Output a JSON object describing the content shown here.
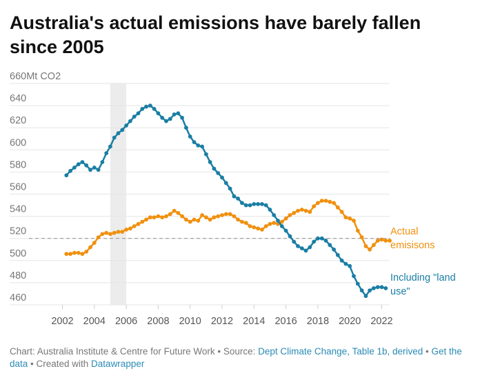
{
  "title": "Australia's actual emissions have barely fallen since 2005",
  "chart_data": {
    "type": "line",
    "title": "Australia's actual emissions have barely fallen since 2005",
    "ylabel": "Mt CO2",
    "y_unit_prefix_label": "660Mt CO2",
    "ylim": [
      460,
      660
    ],
    "y_ticks": [
      "460",
      "480",
      "500",
      "520",
      "540",
      "560",
      "580",
      "600",
      "620",
      "640"
    ],
    "xlim": [
      2002,
      2022.5
    ],
    "x_ticks": [
      "2002",
      "2004",
      "2006",
      "2008",
      "2010",
      "2012",
      "2014",
      "2016",
      "2018",
      "2020",
      "2022"
    ],
    "grid": true,
    "highlight_band": {
      "from": 2005,
      "to": 2006
    },
    "reference_line": {
      "y": 520
    },
    "series": [
      {
        "name": "Actual emisisons",
        "label": "Actual emisisons",
        "color": "#f0900f",
        "points": [
          [
            2002.25,
            506
          ],
          [
            2002.5,
            506
          ],
          [
            2002.75,
            507
          ],
          [
            2003.0,
            507
          ],
          [
            2003.25,
            506
          ],
          [
            2003.5,
            508
          ],
          [
            2003.75,
            512
          ],
          [
            2004.0,
            516
          ],
          [
            2004.25,
            521
          ],
          [
            2004.5,
            524
          ],
          [
            2004.75,
            525
          ],
          [
            2005.0,
            524
          ],
          [
            2005.25,
            525
          ],
          [
            2005.5,
            526
          ],
          [
            2005.75,
            526
          ],
          [
            2006.0,
            528
          ],
          [
            2006.25,
            529
          ],
          [
            2006.5,
            531
          ],
          [
            2006.75,
            533
          ],
          [
            2007.0,
            535
          ],
          [
            2007.25,
            537
          ],
          [
            2007.5,
            539
          ],
          [
            2007.75,
            539
          ],
          [
            2008.0,
            540
          ],
          [
            2008.25,
            539
          ],
          [
            2008.5,
            540
          ],
          [
            2008.75,
            542
          ],
          [
            2009.0,
            545
          ],
          [
            2009.25,
            543
          ],
          [
            2009.5,
            540
          ],
          [
            2009.75,
            537
          ],
          [
            2010.0,
            535
          ],
          [
            2010.25,
            537
          ],
          [
            2010.5,
            536
          ],
          [
            2010.75,
            541
          ],
          [
            2011.0,
            539
          ],
          [
            2011.25,
            537
          ],
          [
            2011.5,
            539
          ],
          [
            2011.75,
            540
          ],
          [
            2012.0,
            541
          ],
          [
            2012.25,
            542
          ],
          [
            2012.5,
            542
          ],
          [
            2012.75,
            540
          ],
          [
            2013.0,
            537
          ],
          [
            2013.25,
            535
          ],
          [
            2013.5,
            534
          ],
          [
            2013.75,
            531
          ],
          [
            2014.0,
            530
          ],
          [
            2014.25,
            529
          ],
          [
            2014.5,
            528
          ],
          [
            2014.75,
            531
          ],
          [
            2015.0,
            533
          ],
          [
            2015.25,
            534
          ],
          [
            2015.5,
            533
          ],
          [
            2015.75,
            535
          ],
          [
            2016.0,
            538
          ],
          [
            2016.25,
            541
          ],
          [
            2016.5,
            543
          ],
          [
            2016.75,
            545
          ],
          [
            2017.0,
            546
          ],
          [
            2017.25,
            545
          ],
          [
            2017.5,
            544
          ],
          [
            2017.75,
            549
          ],
          [
            2018.0,
            552
          ],
          [
            2018.25,
            554
          ],
          [
            2018.5,
            554
          ],
          [
            2018.75,
            553
          ],
          [
            2019.0,
            552
          ],
          [
            2019.25,
            548
          ],
          [
            2019.5,
            544
          ],
          [
            2019.75,
            539
          ],
          [
            2020.0,
            538
          ],
          [
            2020.25,
            536
          ],
          [
            2020.5,
            527
          ],
          [
            2020.75,
            521
          ],
          [
            2021.0,
            513
          ],
          [
            2021.25,
            510
          ],
          [
            2021.5,
            514
          ],
          [
            2021.75,
            518
          ],
          [
            2022.0,
            519
          ],
          [
            2022.25,
            518
          ],
          [
            2022.5,
            518
          ]
        ]
      },
      {
        "name": "Including \"land use\"",
        "label": "Including \"land use\"",
        "color": "#1a7ea4",
        "points": [
          [
            2002.25,
            577
          ],
          [
            2002.5,
            581
          ],
          [
            2002.75,
            584
          ],
          [
            2003.0,
            587
          ],
          [
            2003.25,
            589
          ],
          [
            2003.5,
            586
          ],
          [
            2003.75,
            582
          ],
          [
            2004.0,
            584
          ],
          [
            2004.25,
            582
          ],
          [
            2004.5,
            589
          ],
          [
            2004.75,
            597
          ],
          [
            2005.0,
            603
          ],
          [
            2005.25,
            611
          ],
          [
            2005.5,
            615
          ],
          [
            2005.75,
            618
          ],
          [
            2006.0,
            622
          ],
          [
            2006.25,
            626
          ],
          [
            2006.5,
            630
          ],
          [
            2006.75,
            633
          ],
          [
            2007.0,
            637
          ],
          [
            2007.25,
            639
          ],
          [
            2007.5,
            640
          ],
          [
            2007.75,
            637
          ],
          [
            2008.0,
            633
          ],
          [
            2008.25,
            629
          ],
          [
            2008.5,
            626
          ],
          [
            2008.75,
            628
          ],
          [
            2009.0,
            632
          ],
          [
            2009.25,
            633
          ],
          [
            2009.5,
            629
          ],
          [
            2009.75,
            620
          ],
          [
            2010.0,
            612
          ],
          [
            2010.25,
            607
          ],
          [
            2010.5,
            604
          ],
          [
            2010.75,
            603
          ],
          [
            2011.0,
            596
          ],
          [
            2011.25,
            589
          ],
          [
            2011.5,
            583
          ],
          [
            2011.75,
            579
          ],
          [
            2012.0,
            575
          ],
          [
            2012.25,
            570
          ],
          [
            2012.5,
            565
          ],
          [
            2012.75,
            558
          ],
          [
            2013.0,
            556
          ],
          [
            2013.25,
            552
          ],
          [
            2013.5,
            550
          ],
          [
            2013.75,
            550
          ],
          [
            2014.0,
            551
          ],
          [
            2014.25,
            551
          ],
          [
            2014.5,
            551
          ],
          [
            2014.75,
            550
          ],
          [
            2015.0,
            546
          ],
          [
            2015.25,
            541
          ],
          [
            2015.5,
            536
          ],
          [
            2015.75,
            531
          ],
          [
            2016.0,
            527
          ],
          [
            2016.25,
            522
          ],
          [
            2016.5,
            517
          ],
          [
            2016.75,
            513
          ],
          [
            2017.0,
            511
          ],
          [
            2017.25,
            509
          ],
          [
            2017.5,
            512
          ],
          [
            2017.75,
            517
          ],
          [
            2018.0,
            520
          ],
          [
            2018.25,
            520
          ],
          [
            2018.5,
            518
          ],
          [
            2018.75,
            514
          ],
          [
            2019.0,
            510
          ],
          [
            2019.25,
            505
          ],
          [
            2019.5,
            500
          ],
          [
            2019.75,
            497
          ],
          [
            2020.0,
            495
          ],
          [
            2020.25,
            486
          ],
          [
            2020.5,
            479
          ],
          [
            2020.75,
            473
          ],
          [
            2021.0,
            468
          ],
          [
            2021.25,
            473
          ],
          [
            2021.5,
            475
          ],
          [
            2021.75,
            476
          ],
          [
            2022.0,
            476
          ],
          [
            2022.25,
            475
          ]
        ]
      }
    ],
    "series_labels": [
      {
        "lines": [
          "Actual",
          "emisisons"
        ],
        "color": "#f0900f"
      },
      {
        "lines": [
          "Including \"land",
          "use\""
        ],
        "color": "#1a7ea4"
      }
    ]
  },
  "footer": {
    "prefix": "Chart: Australia Institute & Centre for Future Work • Source: ",
    "source_link": "Dept Climate Change, Table 1b, derived",
    "sep": " • ",
    "get_data_link": "Get the data",
    "created_prefix": " • Created with ",
    "datawrapper_link": "Datawrapper"
  },
  "colors": {
    "grid": "#e5e5e5",
    "axis_text": "#777777",
    "band": "#ececec",
    "reference": "#9a9a9a"
  }
}
